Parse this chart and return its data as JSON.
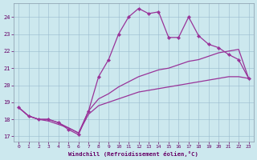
{
  "xlabel": "Windchill (Refroidissement éolien,°C)",
  "bg_color": "#cce8ee",
  "line_color": "#993399",
  "grid_color": "#99bbcc",
  "xlim": [
    -0.5,
    23.5
  ],
  "ylim": [
    16.7,
    24.8
  ],
  "yticks": [
    17,
    18,
    19,
    20,
    21,
    22,
    23,
    24
  ],
  "xticks": [
    0,
    1,
    2,
    3,
    4,
    5,
    6,
    7,
    8,
    9,
    10,
    11,
    12,
    13,
    14,
    15,
    16,
    17,
    18,
    19,
    20,
    21,
    22,
    23
  ],
  "series": [
    {
      "x": [
        0,
        1,
        2,
        3,
        4,
        5,
        6,
        7,
        8,
        9,
        10,
        11,
        12,
        13,
        14,
        15,
        16,
        17,
        18,
        19,
        20,
        21,
        22,
        23
      ],
      "y": [
        18.7,
        18.2,
        18.0,
        18.0,
        17.8,
        17.4,
        17.1,
        18.5,
        20.5,
        21.5,
        23.0,
        24.0,
        24.5,
        24.2,
        24.3,
        22.8,
        22.8,
        24.0,
        22.9,
        22.4,
        22.2,
        21.8,
        21.5,
        20.4
      ],
      "marker": true
    },
    {
      "x": [
        0,
        1,
        2,
        3,
        4,
        5,
        6,
        7,
        8,
        9,
        10,
        11,
        12,
        13,
        14,
        15,
        16,
        17,
        18,
        19,
        20,
        21,
        22,
        23
      ],
      "y": [
        18.7,
        18.2,
        18.0,
        18.0,
        17.8,
        17.5,
        17.2,
        18.5,
        19.2,
        19.5,
        19.9,
        20.2,
        20.5,
        20.7,
        20.9,
        21.0,
        21.2,
        21.4,
        21.5,
        21.7,
        21.9,
        22.0,
        22.1,
        20.4
      ],
      "marker": false
    },
    {
      "x": [
        0,
        1,
        2,
        3,
        4,
        5,
        6,
        7,
        8,
        9,
        10,
        11,
        12,
        13,
        14,
        15,
        16,
        17,
        18,
        19,
        20,
        21,
        22,
        23
      ],
      "y": [
        18.7,
        18.2,
        18.0,
        17.9,
        17.7,
        17.5,
        17.2,
        18.3,
        18.8,
        19.0,
        19.2,
        19.4,
        19.6,
        19.7,
        19.8,
        19.9,
        20.0,
        20.1,
        20.2,
        20.3,
        20.4,
        20.5,
        20.5,
        20.4
      ],
      "marker": false
    }
  ]
}
